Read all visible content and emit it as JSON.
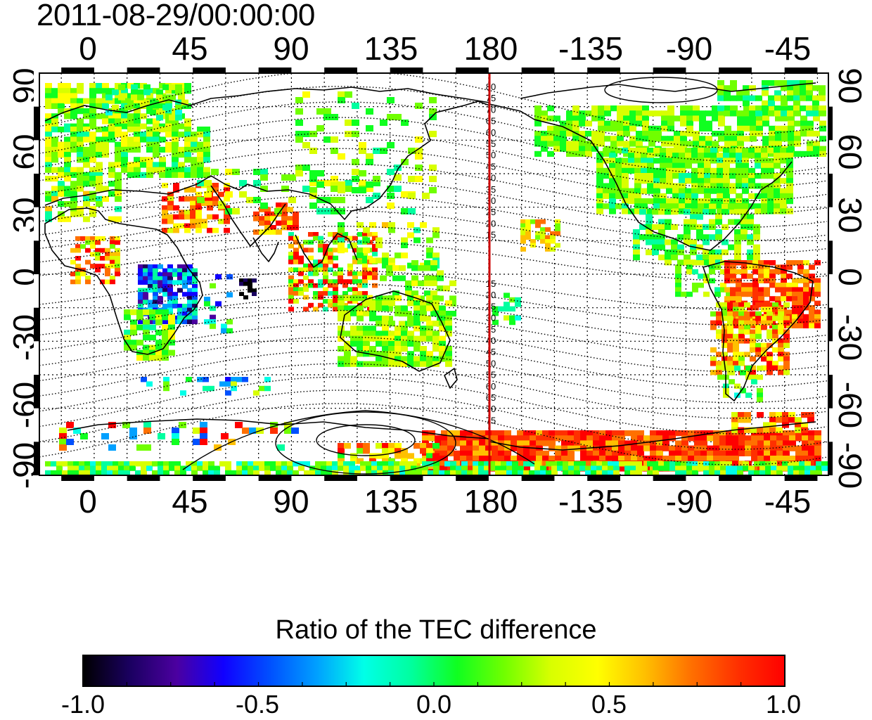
{
  "header": {
    "timestamp": "2011-08-29/00:00:00"
  },
  "axes": {
    "top_ticks": [
      "0",
      "45",
      "90",
      "135",
      "180",
      "-135",
      "-90",
      "-45"
    ],
    "bottom_ticks": [
      "0",
      "45",
      "90",
      "135",
      "180",
      "-135",
      "-90",
      "-45"
    ],
    "left_ticks": [
      "90",
      "60",
      "30",
      "0",
      "-30",
      "-60",
      "-90"
    ],
    "right_ticks": [
      "90",
      "60",
      "30",
      "0",
      "-30",
      "-60",
      "-90"
    ]
  },
  "contour_labels": {
    "north": [
      "80",
      "75",
      "70",
      "65",
      "60",
      "55",
      "50",
      "45",
      "40",
      "35",
      "30",
      "25",
      "20",
      "15"
    ],
    "south": [
      "15",
      "20",
      "25",
      "30",
      "35",
      "40",
      "45",
      "50",
      "55",
      "60",
      "65",
      "70",
      "75"
    ]
  },
  "colorbar": {
    "title": "Ratio of the TEC difference",
    "ticks": [
      "-1.0",
      "-0.5",
      "0.0",
      "0.5",
      "1.0"
    ],
    "range": [
      -1.0,
      1.0
    ],
    "colors": [
      "#000000",
      "#1a0060",
      "#4b00a0",
      "#1000ff",
      "#0050ff",
      "#00a0ff",
      "#00ffe8",
      "#00ffa0",
      "#10ff20",
      "#70ff00",
      "#d8ff00",
      "#ffff00",
      "#ffc000",
      "#ff7000",
      "#ff3000",
      "#ff0000"
    ]
  },
  "map": {
    "meridian_color": "#cc0000",
    "lon_range": [
      -10,
      350
    ],
    "lat_range": [
      -90,
      90
    ],
    "projection": "equirectangular",
    "grid": "dotted 15 deg",
    "contours": "magnetic latitude"
  }
}
